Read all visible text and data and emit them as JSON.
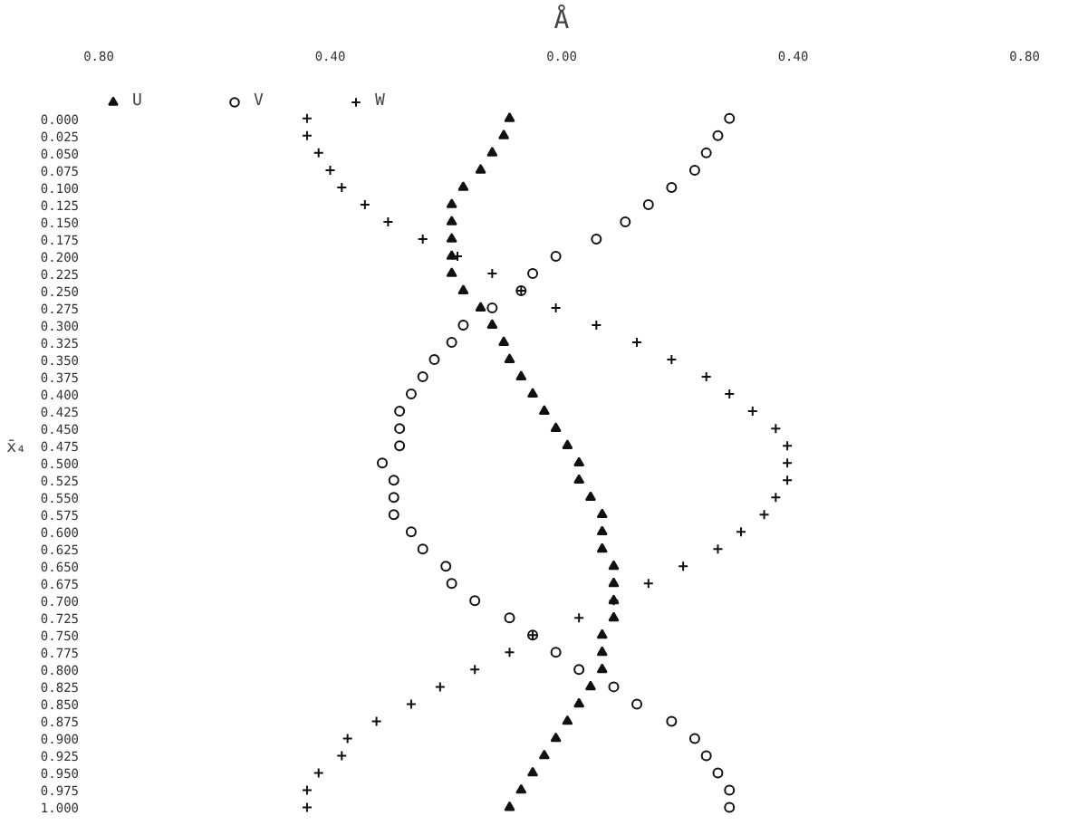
{
  "chart_data": {
    "type": "scatter",
    "orientation": "horizontal",
    "xlabel": "Å",
    "ylabel": "x̄₄",
    "categories": [
      "0.000",
      "0.025",
      "0.050",
      "0.075",
      "0.100",
      "0.125",
      "0.150",
      "0.175",
      "0.200",
      "0.225",
      "0.250",
      "0.275",
      "0.300",
      "0.325",
      "0.350",
      "0.375",
      "0.400",
      "0.425",
      "0.450",
      "0.475",
      "0.500",
      "0.525",
      "0.550",
      "0.575",
      "0.600",
      "0.625",
      "0.650",
      "0.675",
      "0.700",
      "0.725",
      "0.750",
      "0.775",
      "0.800",
      "0.825",
      "0.850",
      "0.875",
      "0.900",
      "0.925",
      "0.950",
      "0.975",
      "1.000"
    ],
    "series": [
      {
        "name": "U",
        "color": "#111111",
        "marker": "triangle",
        "values": [
          -0.09,
          -0.1,
          -0.12,
          -0.14,
          -0.17,
          -0.19,
          -0.19,
          -0.19,
          -0.19,
          -0.19,
          -0.17,
          -0.14,
          -0.12,
          -0.1,
          -0.09,
          -0.07,
          -0.05,
          -0.03,
          -0.01,
          0.01,
          0.03,
          0.03,
          0.05,
          0.07,
          0.07,
          0.07,
          0.09,
          0.09,
          0.09,
          0.09,
          0.07,
          0.07,
          0.07,
          0.05,
          0.03,
          0.01,
          -0.01,
          -0.03,
          -0.05,
          -0.07,
          -0.09
        ]
      },
      {
        "name": "V",
        "color": "#111111",
        "marker": "circle",
        "values": [
          0.29,
          0.27,
          0.25,
          0.23,
          0.19,
          0.15,
          0.11,
          0.06,
          -0.01,
          -0.05,
          -0.07,
          -0.12,
          -0.17,
          -0.19,
          -0.22,
          -0.24,
          -0.26,
          -0.28,
          -0.28,
          -0.28,
          -0.31,
          -0.29,
          -0.29,
          -0.29,
          -0.26,
          -0.24,
          -0.2,
          -0.19,
          -0.15,
          -0.09,
          -0.05,
          -0.01,
          0.03,
          0.09,
          0.13,
          0.19,
          0.23,
          0.25,
          0.27,
          0.29,
          0.29
        ]
      },
      {
        "name": "W",
        "color": "#111111",
        "marker": "cross",
        "values": [
          -0.44,
          -0.44,
          -0.42,
          -0.4,
          -0.38,
          -0.34,
          -0.3,
          -0.24,
          -0.18,
          -0.12,
          -0.07,
          -0.01,
          0.06,
          0.13,
          0.19,
          0.25,
          0.29,
          0.33,
          0.37,
          0.39,
          0.39,
          0.39,
          0.37,
          0.35,
          0.31,
          0.27,
          0.21,
          0.15,
          0.09,
          0.03,
          -0.05,
          -0.09,
          -0.15,
          -0.21,
          -0.26,
          -0.32,
          -0.37,
          -0.38,
          -0.42,
          -0.44,
          -0.44
        ]
      }
    ],
    "xlim": [
      -0.8,
      0.8
    ],
    "xticks": [
      {
        "value": -0.8,
        "label": "0.80"
      },
      {
        "value": -0.4,
        "label": "0.40"
      },
      {
        "value": 0,
        "label": "0.00"
      },
      {
        "value": 0.4,
        "label": "0.40"
      },
      {
        "value": 0.8,
        "label": "0.80"
      }
    ],
    "grid": false,
    "legend": "top left"
  }
}
